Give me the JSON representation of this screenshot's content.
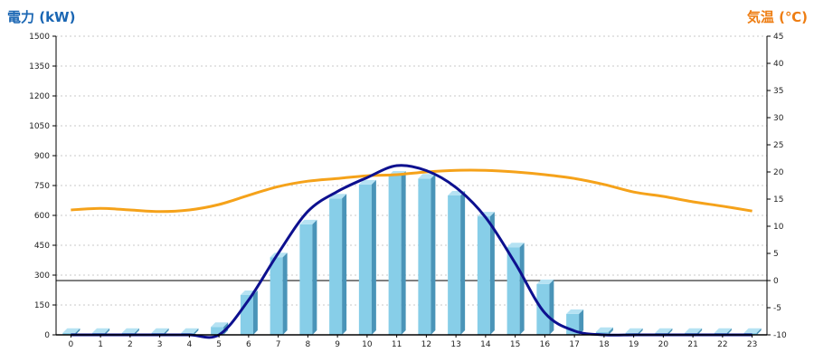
{
  "chart_data": {
    "type": "bar",
    "title": "",
    "x": [
      "0",
      "1",
      "2",
      "3",
      "4",
      "5",
      "6",
      "7",
      "8",
      "9",
      "10",
      "11",
      "12",
      "13",
      "14",
      "15",
      "16",
      "17",
      "18",
      "19",
      "20",
      "21",
      "22",
      "23"
    ],
    "left_axis": {
      "label": "電力 (kW)",
      "ylim": [
        0,
        1500
      ],
      "ticks": [
        "0",
        "150",
        "300",
        "450",
        "600",
        "750",
        "900",
        "1050",
        "1200",
        "1350",
        "1500"
      ]
    },
    "right_axis": {
      "label": "気温 (℃)",
      "ylim": [
        -10,
        45
      ],
      "ticks": [
        "-10",
        "-5",
        "0",
        "5",
        "10",
        "15",
        "20",
        "25",
        "30",
        "35",
        "40",
        "45"
      ]
    },
    "series": [
      {
        "kind": "bar",
        "axis": "left",
        "values": [
          10,
          10,
          10,
          10,
          10,
          40,
          200,
          390,
          555,
          685,
          755,
          800,
          785,
          700,
          595,
          440,
          255,
          105,
          15,
          10,
          10,
          10,
          10,
          10
        ]
      },
      {
        "kind": "line",
        "axis": "left",
        "values": [
          0,
          0,
          0,
          0,
          0,
          0,
          175,
          410,
          620,
          720,
          790,
          850,
          825,
          740,
          590,
          360,
          110,
          20,
          0,
          0,
          0,
          0,
          0,
          0
        ]
      },
      {
        "kind": "line",
        "axis": "right",
        "values": [
          13.0,
          13.3,
          13.0,
          12.7,
          13.0,
          14.0,
          15.7,
          17.3,
          18.3,
          18.8,
          19.3,
          19.5,
          20.0,
          20.3,
          20.3,
          20.0,
          19.5,
          18.8,
          17.7,
          16.3,
          15.5,
          14.5,
          13.7,
          12.8
        ]
      }
    ],
    "reference_line": {
      "axis": "right",
      "value": 0
    },
    "colors": {
      "bar_front": "#87CEE8",
      "bar_side": "#4A94B8",
      "bar_top": "#B5E2F3",
      "power_line": "#0D108F",
      "temp_line": "#F5A21A",
      "left_label": "#1A66B3",
      "right_label": "#EE7D12"
    },
    "grid": "horizontal-dashed",
    "legend": "none"
  }
}
